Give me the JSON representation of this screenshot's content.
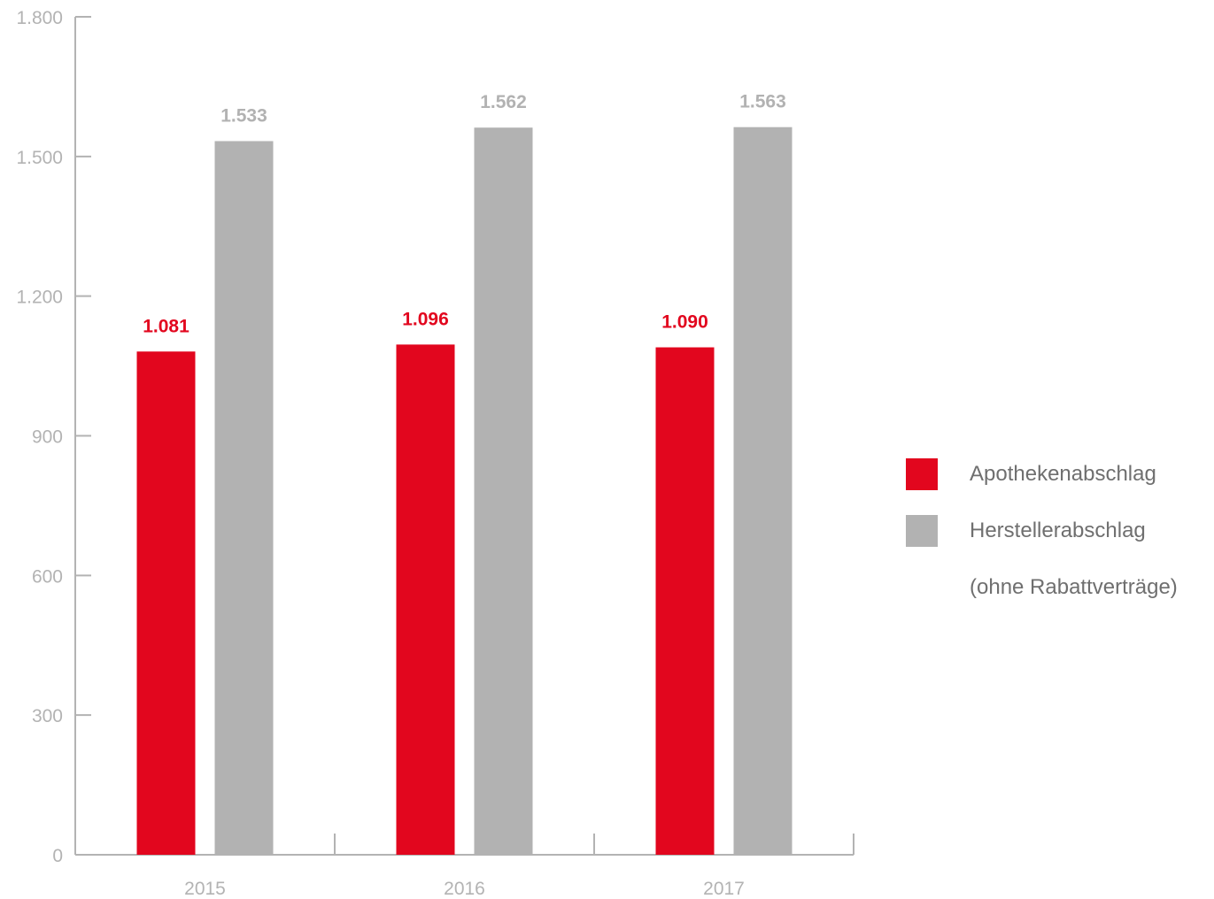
{
  "chart_data": {
    "type": "bar",
    "categories": [
      "2015",
      "2016",
      "2017"
    ],
    "series": [
      {
        "name": "Apothekenabschlag",
        "values": [
          1081,
          1096,
          1090
        ],
        "labels": [
          "1.081",
          "1.096",
          "1.090"
        ],
        "color": "#e2061e"
      },
      {
        "name": "Herstellerabschlag (ohne Rabattverträge)",
        "values": [
          1533,
          1562,
          1563
        ],
        "labels": [
          "1.533",
          "1.562",
          "1.563"
        ],
        "color": "#b2b2b2"
      }
    ],
    "ylim": [
      0,
      1800
    ],
    "yticks": [
      0,
      300,
      600,
      900,
      1200,
      1500,
      1800
    ],
    "ytick_labels": [
      "0",
      "300",
      "600",
      "900",
      "1.200",
      "1.500",
      "1.800"
    ],
    "grid": false,
    "legend_position": "right",
    "axis_color": "#b3b3b3"
  },
  "legend": {
    "items": [
      {
        "label": "Apothekenabschlag",
        "label_line2": ""
      },
      {
        "label": "Herstellerabschlag",
        "label_line2": "(ohne Rabattverträge)"
      }
    ]
  }
}
